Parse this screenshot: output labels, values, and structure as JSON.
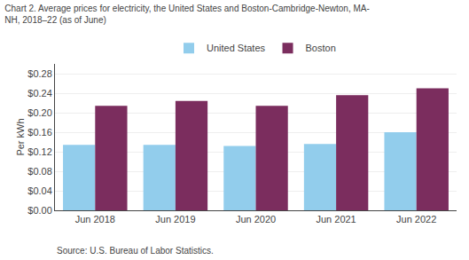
{
  "chart_data": {
    "type": "bar",
    "title": "Chart 2. Average prices for electricity, the United States and Boston-Cambridge-Newton, MA-",
    "subtitle": "NH, 2018–22 (as of June)",
    "ylabel": "Per kWh",
    "annotations": [
      "Source: U.S. Bureau of Labor Statistics."
    ],
    "categories": [
      "Jun 2018",
      "Jun 2019",
      "Jun 2020",
      "Jun 2021",
      "Jun 2022"
    ],
    "series": [
      {
        "name": "United States",
        "color": "#92CDEC",
        "values": [
          0.134,
          0.134,
          0.132,
          0.136,
          0.16
        ]
      },
      {
        "name": "Boston",
        "color": "#7B2D5E",
        "values": [
          0.214,
          0.224,
          0.214,
          0.236,
          0.25
        ]
      }
    ],
    "ylim": [
      0.0,
      0.3
    ],
    "yticks": [
      {
        "value": 0.0,
        "label": "$0.00"
      },
      {
        "value": 0.04,
        "label": "$0.04"
      },
      {
        "value": 0.08,
        "label": "$0.08"
      },
      {
        "value": 0.12,
        "label": "$0.12"
      },
      {
        "value": 0.16,
        "label": "$0.16"
      },
      {
        "value": 0.2,
        "label": "$0.20"
      },
      {
        "value": 0.24,
        "label": "$0.24"
      },
      {
        "value": 0.28,
        "label": "$0.28"
      }
    ],
    "grid": true,
    "legend": "top"
  }
}
